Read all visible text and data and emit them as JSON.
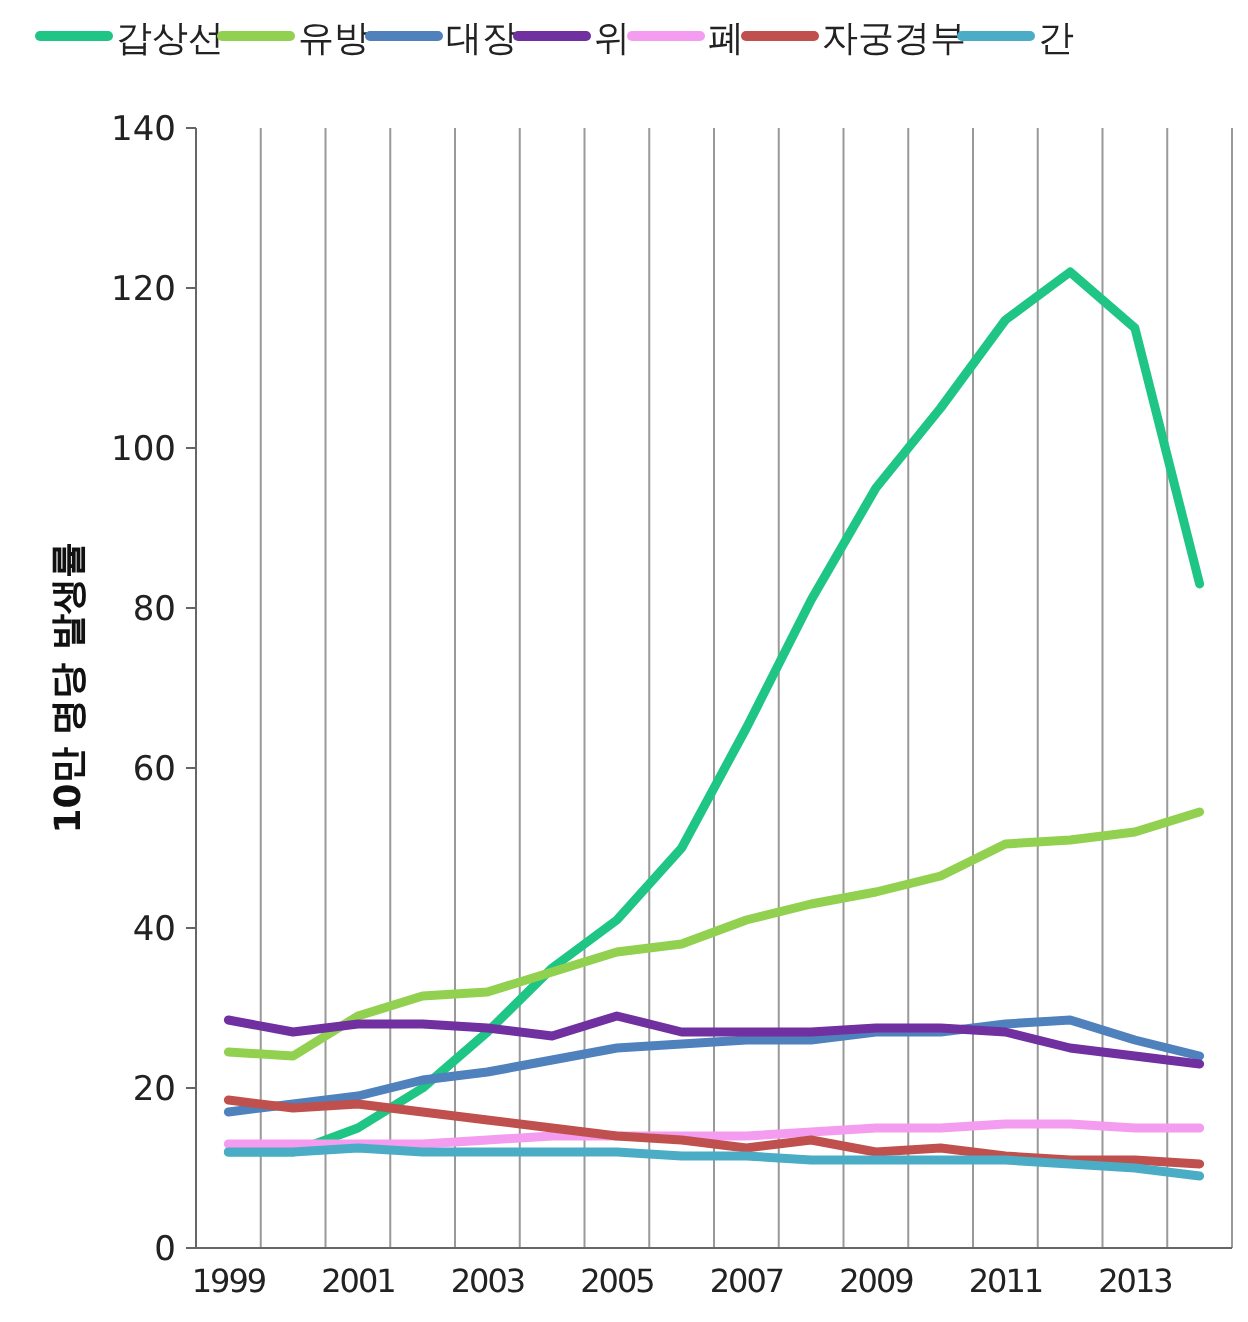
{
  "chart_data": {
    "type": "line",
    "ylabel": "10만 명당 발생률",
    "categories": [
      "1999",
      null,
      "2001",
      null,
      "2003",
      null,
      "2005",
      null,
      "2007",
      null,
      "2009",
      null,
      "2011",
      null,
      "2013",
      null
    ],
    "series": [
      {
        "name": "갑상선",
        "color": "#1fc584",
        "values": [
          12,
          12,
          15,
          20,
          27,
          35,
          41,
          50,
          65,
          81,
          95,
          105,
          116,
          122,
          115,
          83
        ]
      },
      {
        "name": "유방",
        "color": "#92d050",
        "values": [
          24.5,
          24,
          29,
          31.5,
          32,
          34.5,
          37,
          38,
          41,
          43,
          44.5,
          46.5,
          50.5,
          51,
          52,
          54.5
        ]
      },
      {
        "name": "대장",
        "color": "#4f81bd",
        "values": [
          17,
          18,
          19,
          21,
          22,
          23.5,
          25,
          25.5,
          26,
          26,
          27,
          27,
          28,
          28.5,
          26,
          24
        ]
      },
      {
        "name": "위",
        "color": "#7030a0",
        "values": [
          28.5,
          27,
          28,
          28,
          27.5,
          26.5,
          29,
          27,
          27,
          27,
          27.5,
          27.5,
          27,
          25,
          24,
          23
        ]
      },
      {
        "name": "폐",
        "color": "#f49cf0",
        "values": [
          13,
          13,
          13,
          13,
          13.5,
          14,
          14,
          14,
          14,
          14.5,
          15,
          15,
          15.5,
          15.5,
          15,
          15
        ]
      },
      {
        "name": "자궁경부",
        "color": "#c0504d",
        "values": [
          18.5,
          17.5,
          18,
          17,
          16,
          15,
          14,
          13.5,
          12.5,
          13.5,
          12,
          12.5,
          11.5,
          11,
          11,
          10.5
        ]
      },
      {
        "name": "간",
        "color": "#4bacc6",
        "values": [
          12,
          12,
          12.5,
          12,
          12,
          12,
          12,
          11.5,
          11.5,
          11,
          11,
          11,
          11,
          10.5,
          10,
          9
        ]
      }
    ],
    "ylim": [
      0,
      140
    ],
    "yticks": [
      0,
      20,
      40,
      60,
      80,
      100,
      120,
      140
    ],
    "grid": "x",
    "legend": "top",
    "marker": "none",
    "line_style": "solid"
  }
}
